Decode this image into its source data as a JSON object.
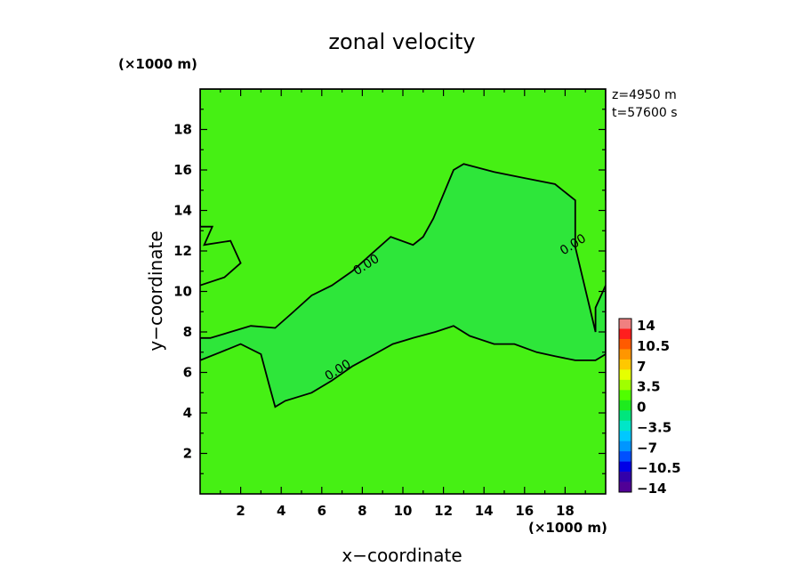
{
  "chart_data": {
    "type": "heatmap",
    "title": "zonal velocity",
    "xlabel": "x−coordinate",
    "ylabel": "y−coordinate",
    "x_unit": "(×1000 m)",
    "y_unit": "(×1000 m)",
    "info": [
      "z=4950  m",
      "t=57600  s"
    ],
    "xlim": [
      0,
      20
    ],
    "ylim": [
      0,
      20
    ],
    "xticks": [
      2,
      4,
      6,
      8,
      10,
      12,
      14,
      16,
      18
    ],
    "yticks": [
      2,
      4,
      6,
      8,
      10,
      12,
      14,
      16,
      18
    ],
    "contour_label": "0.00",
    "contour_labels": [
      {
        "x": 8.2,
        "y": 11.3
      },
      {
        "x": 6.8,
        "y": 6.1
      },
      {
        "x": 18.4,
        "y": 12.3
      }
    ],
    "colorbar": {
      "labels": [
        "14",
        "10.5",
        "7",
        "3.5",
        "0",
        "−3.5",
        "−7",
        "−10.5",
        "−14"
      ],
      "colors": [
        "#f08080",
        "#ff1e1e",
        "#ff5a00",
        "#ff9600",
        "#ffc800",
        "#e6ff00",
        "#a0ff00",
        "#50ff00",
        "#1eeb1e",
        "#00e67d",
        "#00e6c8",
        "#00c8ff",
        "#0096ff",
        "#0050ff",
        "#0000e6",
        "#3200aa",
        "#500096"
      ]
    },
    "field_colors": {
      "positive": "#46f014",
      "negative": "#2ee63a"
    },
    "regions": {
      "negative_zone": [
        [
          0,
          6.6
        ],
        [
          1,
          7.0
        ],
        [
          2,
          7.4
        ],
        [
          3,
          6.9
        ],
        [
          3.4,
          5.4
        ],
        [
          3.7,
          4.3
        ],
        [
          4.2,
          4.6
        ],
        [
          5.5,
          5.0
        ],
        [
          6.5,
          5.6
        ],
        [
          7.5,
          6.3
        ],
        [
          8.6,
          6.9
        ],
        [
          9.5,
          7.4
        ],
        [
          10.5,
          7.7
        ],
        [
          11.6,
          8.0
        ],
        [
          12.5,
          8.3
        ],
        [
          13.3,
          7.8
        ],
        [
          14.5,
          7.4
        ],
        [
          15.5,
          7.4
        ],
        [
          16.6,
          7.0
        ],
        [
          17.5,
          6.8
        ],
        [
          18.5,
          6.6
        ],
        [
          19.5,
          6.6
        ],
        [
          20,
          6.9
        ],
        [
          20,
          10.3
        ],
        [
          19.5,
          9.2
        ],
        [
          19.5,
          8.0
        ],
        [
          18.5,
          12.2
        ],
        [
          18.5,
          14.5
        ],
        [
          17.5,
          15.3
        ],
        [
          16.0,
          15.6
        ],
        [
          14.5,
          15.9
        ],
        [
          13.0,
          16.3
        ],
        [
          12.5,
          16.0
        ],
        [
          12.0,
          14.8
        ],
        [
          11.5,
          13.6
        ],
        [
          11.0,
          12.7
        ],
        [
          10.5,
          12.3
        ],
        [
          9.4,
          12.7
        ],
        [
          8.5,
          11.9
        ],
        [
          7.5,
          11.0
        ],
        [
          6.5,
          10.3
        ],
        [
          5.5,
          9.8
        ],
        [
          4.5,
          8.9
        ],
        [
          3.7,
          8.2
        ],
        [
          2.5,
          8.3
        ],
        [
          1.5,
          8.0
        ],
        [
          0.5,
          7.7
        ],
        [
          0,
          7.7
        ]
      ],
      "north_zone": [
        [
          20,
          14.5
        ],
        [
          20,
          20
        ],
        [
          0,
          20
        ],
        [
          0,
          13.2
        ],
        [
          0.6,
          13.2
        ],
        [
          0.2,
          12.3
        ],
        [
          1.5,
          12.5
        ],
        [
          2.0,
          11.4
        ],
        [
          1.2,
          10.7
        ],
        [
          0,
          10.3
        ]
      ]
    }
  }
}
